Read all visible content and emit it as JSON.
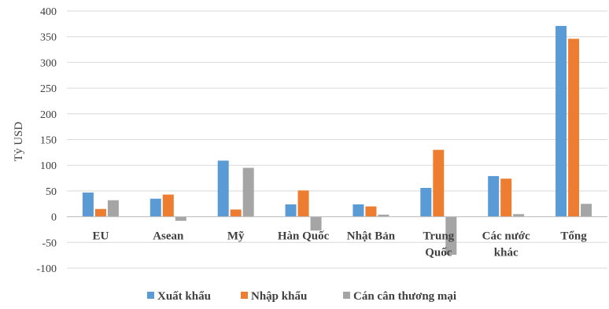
{
  "chart_data": {
    "type": "bar",
    "title": "",
    "xlabel": "",
    "ylabel": "Tỷ USD",
    "ylim": [
      -100,
      400
    ],
    "yticks": [
      -100,
      -50,
      0,
      50,
      100,
      150,
      200,
      250,
      300,
      350,
      400
    ],
    "grid": true,
    "legend_position": "bottom",
    "categories": [
      [
        "EU"
      ],
      [
        "Asean"
      ],
      [
        "Mỹ"
      ],
      [
        "Hàn Quốc"
      ],
      [
        "Nhật Bản"
      ],
      [
        "Trung",
        "Quốc"
      ],
      [
        "Các nước",
        "khác"
      ],
      [
        "Tổng"
      ]
    ],
    "series": [
      {
        "name": "Xuất khẩu",
        "color": "#5B9BD5",
        "values": [
          47,
          35,
          109,
          24,
          24,
          56,
          79,
          371
        ]
      },
      {
        "name": "Nhập khẩu",
        "color": "#ED7D31",
        "values": [
          15,
          43,
          14,
          51,
          20,
          130,
          74,
          346
        ]
      },
      {
        "name": "Cán cân thương mại",
        "color": "#A5A5A5",
        "values": [
          32,
          -8,
          95,
          -27,
          4,
          -74,
          5,
          25
        ]
      }
    ]
  }
}
